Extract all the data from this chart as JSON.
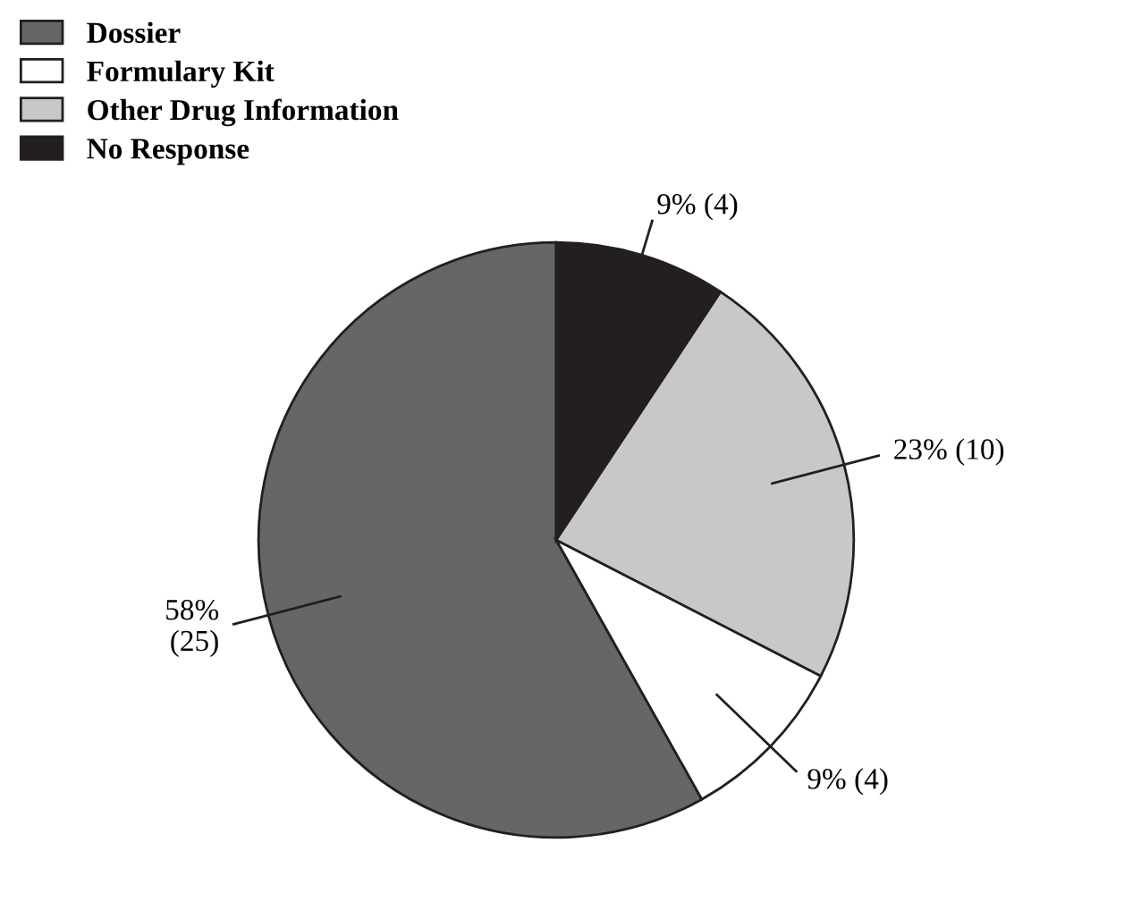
{
  "chart_data": {
    "type": "pie",
    "categories": [
      "Dossier",
      "Formulary Kit",
      "Other Drug Information",
      "No Response"
    ],
    "values": [
      25,
      4,
      10,
      4
    ],
    "value_labels": [
      "58%\n(25)",
      "9% (4)",
      "23% (10)",
      "9% (4)"
    ],
    "colors": [
      "#666666",
      "#ffffff",
      "#c8c8c8",
      "#231f20"
    ],
    "legend": "top left"
  }
}
